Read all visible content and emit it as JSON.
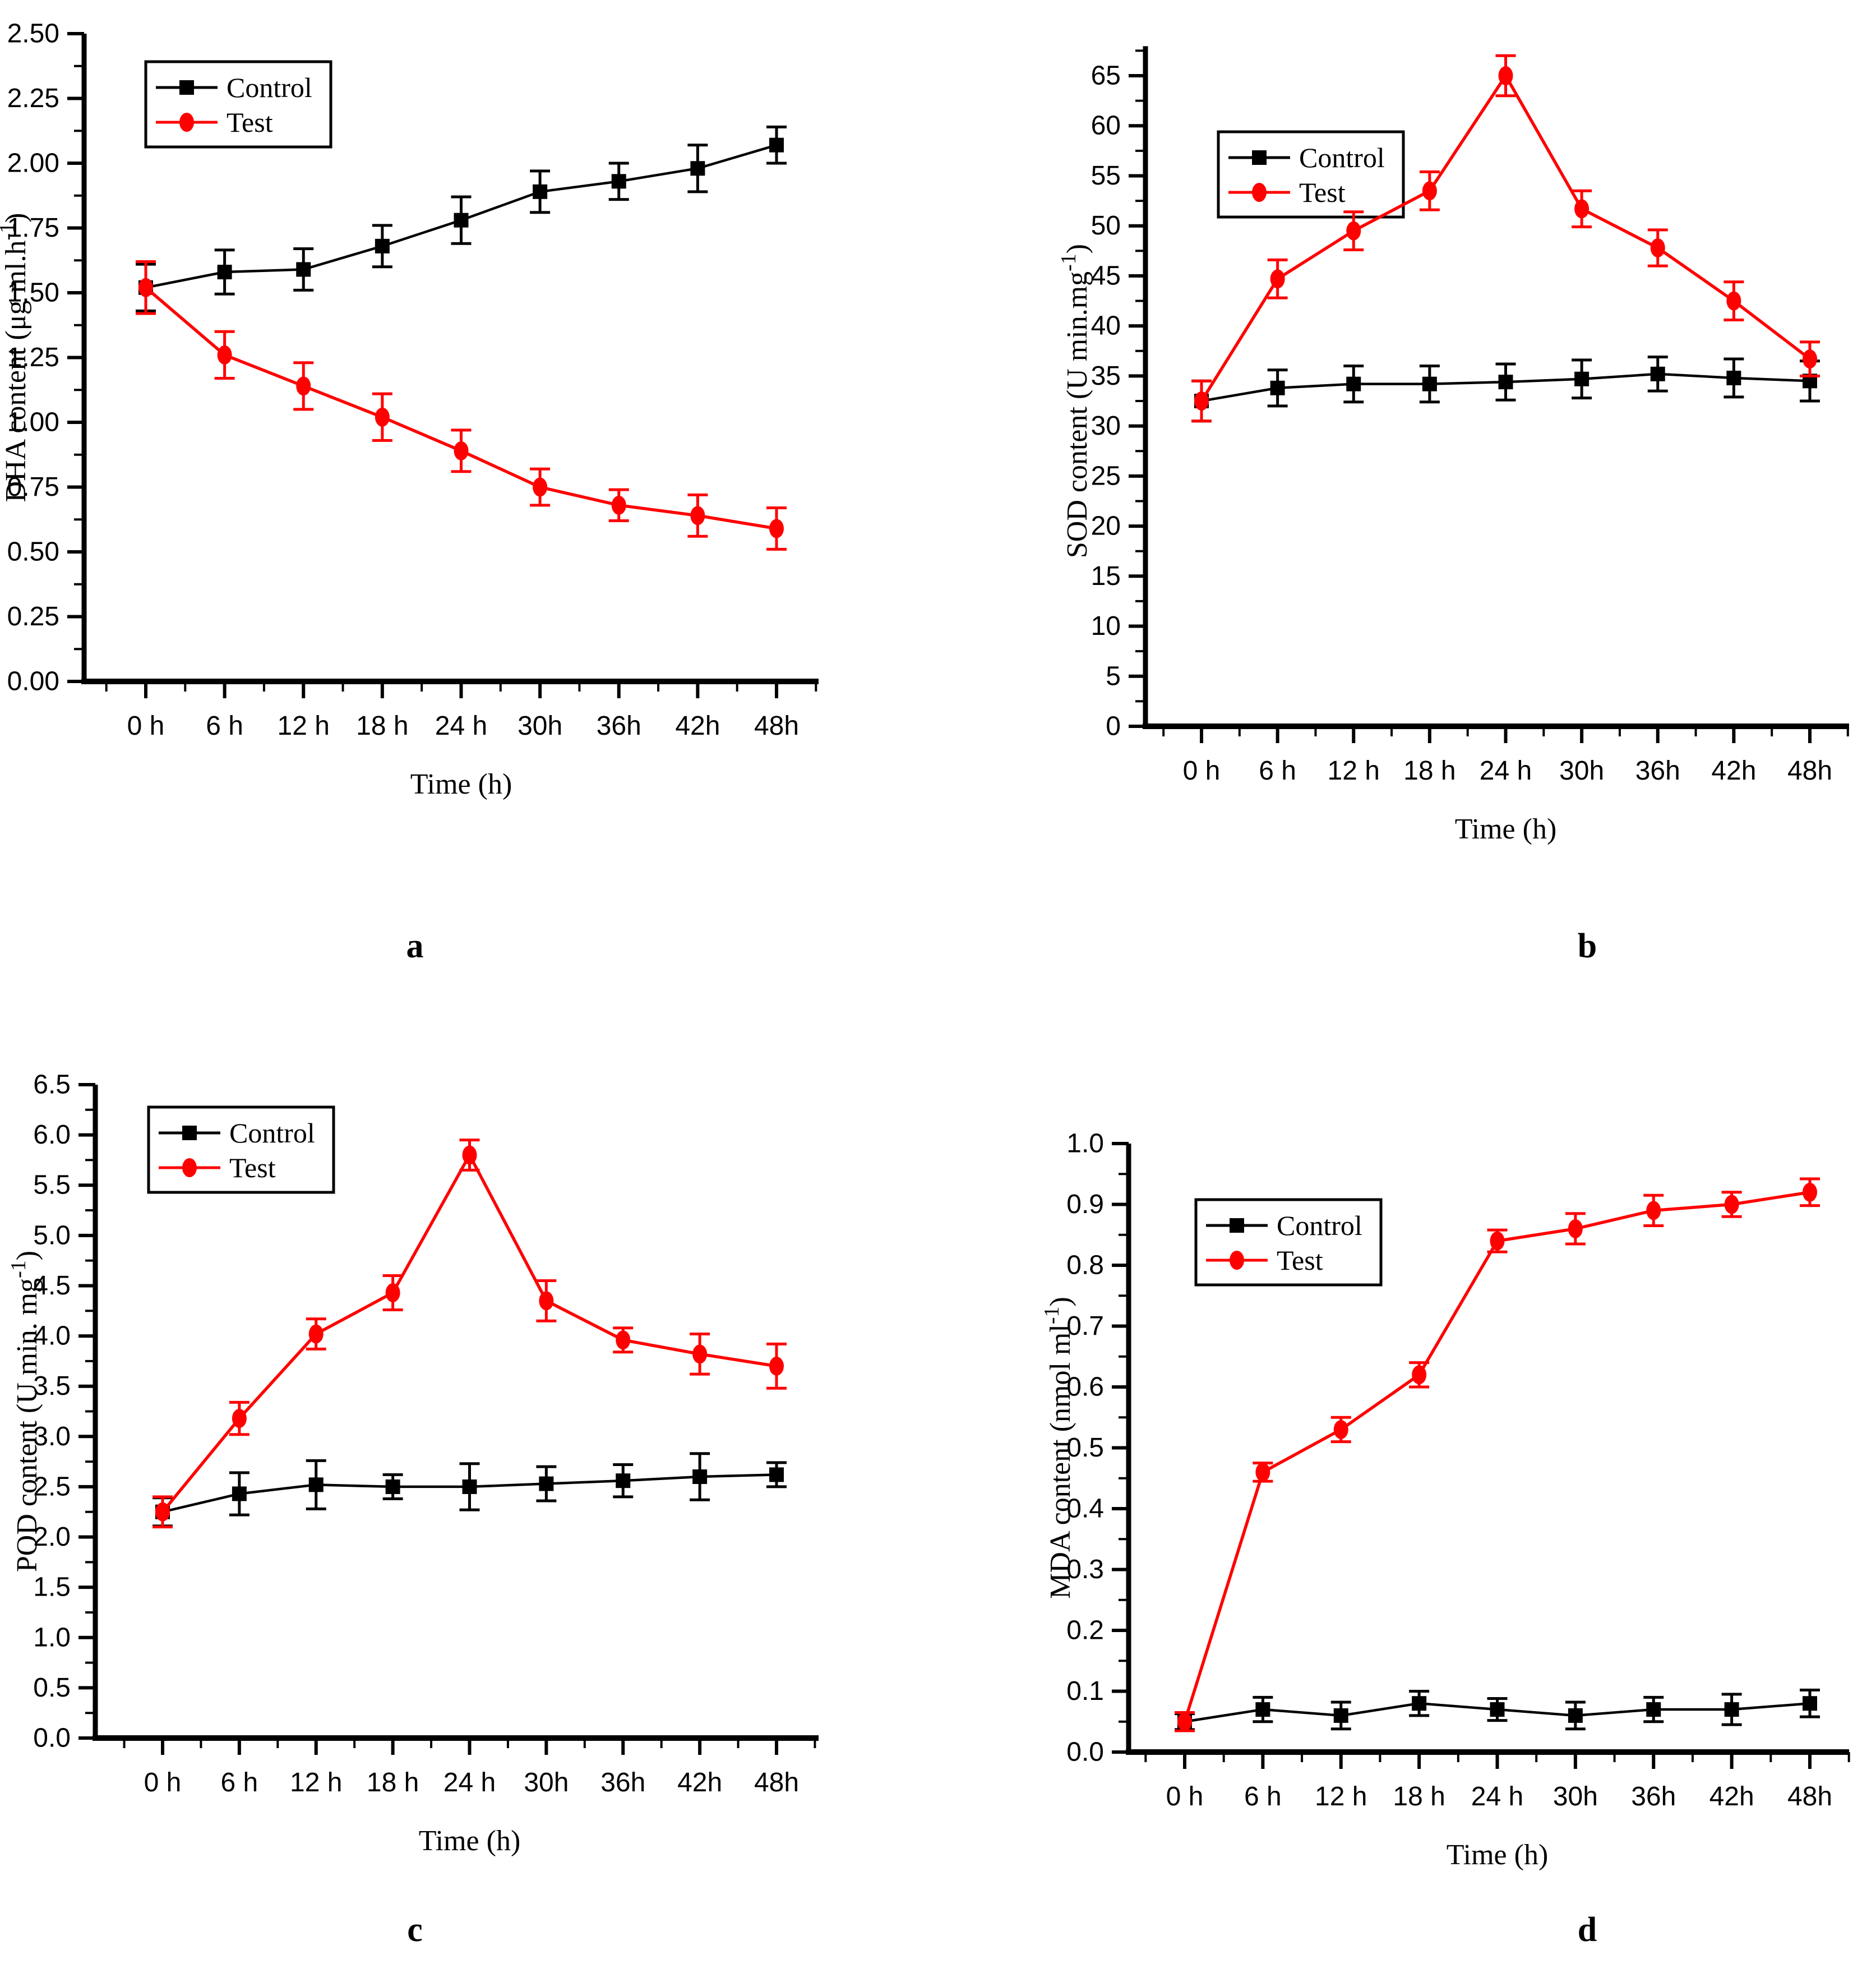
{
  "figure": {
    "background": "#ffffff",
    "control_color": "#000000",
    "test_color": "#ff0000"
  },
  "chart_data": [
    {
      "panel_label": "a",
      "type": "line",
      "title": "",
      "xlabel": "Time (h)",
      "ylabel": "DHA content (μg ml.h⁻¹)",
      "categories": [
        "0 h",
        "6 h",
        "12 h",
        "18 h",
        "24 h",
        "30h",
        "36h",
        "42h",
        "48h"
      ],
      "y_axis": {
        "min": 0,
        "max": 2.5,
        "major_step": 0.25,
        "minor_step": 0.125,
        "tick_labels": [
          "0.00",
          "0.25",
          "0.50",
          "0.75",
          "1.00",
          "1.25",
          "1.50",
          "1.75",
          "2.00",
          "2.25",
          "2.50"
        ]
      },
      "legend": {
        "position": "top-left-inside",
        "entries": [
          "Control",
          "Test"
        ]
      },
      "grid": "off",
      "series": [
        {
          "name": "Control",
          "marker": "square",
          "color": "#000000",
          "values": [
            1.52,
            1.58,
            1.59,
            1.68,
            1.78,
            1.89,
            1.93,
            1.98,
            2.07
          ],
          "errors": [
            0.09,
            0.085,
            0.08,
            0.08,
            0.09,
            0.08,
            0.07,
            0.09,
            0.07
          ]
        },
        {
          "name": "Test",
          "marker": "ellipse",
          "color": "#ff0000",
          "values": [
            1.52,
            1.26,
            1.14,
            1.02,
            0.89,
            0.75,
            0.68,
            0.64,
            0.59
          ],
          "errors": [
            0.1,
            0.09,
            0.09,
            0.09,
            0.08,
            0.07,
            0.06,
            0.08,
            0.08
          ]
        }
      ]
    },
    {
      "panel_label": "b",
      "type": "line",
      "title": "",
      "xlabel": "Time (h)",
      "ylabel": "SOD content (U min.mg⁻¹)",
      "categories": [
        "0 h",
        "6 h",
        "12 h",
        "18 h",
        "24 h",
        "30h",
        "36h",
        "42h",
        "48h"
      ],
      "y_axis": {
        "min": 0,
        "max": 65,
        "major_step": 5,
        "minor_step": 2.5,
        "tick_labels": [
          "0",
          "5",
          "10",
          "15",
          "20",
          "25",
          "30",
          "35",
          "40",
          "45",
          "50",
          "55",
          "60",
          "65"
        ]
      },
      "legend": {
        "position": "top-left-inside",
        "entries": [
          "Control",
          "Test"
        ]
      },
      "grid": "off",
      "series": [
        {
          "name": "Control",
          "marker": "square",
          "color": "#000000",
          "values": [
            32.5,
            33.8,
            34.2,
            34.2,
            34.4,
            34.7,
            35.2,
            34.8,
            34.5
          ],
          "errors": [
            2.0,
            1.8,
            1.8,
            1.8,
            1.8,
            1.9,
            1.7,
            1.9,
            2.0
          ]
        },
        {
          "name": "Test",
          "marker": "ellipse",
          "color": "#ff0000",
          "values": [
            32.5,
            44.7,
            49.5,
            53.5,
            65.0,
            51.7,
            47.8,
            42.5,
            36.7
          ],
          "errors": [
            2.0,
            1.9,
            1.9,
            1.9,
            2.0,
            1.8,
            1.8,
            1.9,
            1.7
          ]
        }
      ]
    },
    {
      "panel_label": "c",
      "type": "line",
      "title": "",
      "xlabel": "Time (h)",
      "ylabel": "POD content (U min. mg⁻¹)",
      "categories": [
        "0 h",
        "6 h",
        "12 h",
        "18 h",
        "24 h",
        "30h",
        "36h",
        "42h",
        "48h"
      ],
      "y_axis": {
        "min": 0,
        "max": 6.5,
        "major_step": 0.5,
        "minor_step": 0.25,
        "tick_labels": [
          "0.0",
          "0.5",
          "1.0",
          "1.5",
          "2.0",
          "2.5",
          "3.0",
          "3.5",
          "4.0",
          "4.5",
          "5.0",
          "5.5",
          "6.0",
          "6.5"
        ]
      },
      "legend": {
        "position": "top-left-inside",
        "entries": [
          "Control",
          "Test"
        ]
      },
      "grid": "off",
      "series": [
        {
          "name": "Control",
          "marker": "square",
          "color": "#000000",
          "values": [
            2.25,
            2.43,
            2.52,
            2.5,
            2.5,
            2.53,
            2.56,
            2.6,
            2.62
          ],
          "errors": [
            0.14,
            0.21,
            0.24,
            0.12,
            0.23,
            0.17,
            0.16,
            0.23,
            0.12
          ]
        },
        {
          "name": "Test",
          "marker": "ellipse",
          "color": "#ff0000",
          "values": [
            2.25,
            3.18,
            4.02,
            4.43,
            5.8,
            4.35,
            3.96,
            3.82,
            3.7
          ],
          "errors": [
            0.15,
            0.16,
            0.15,
            0.17,
            0.15,
            0.2,
            0.12,
            0.2,
            0.22
          ]
        }
      ]
    },
    {
      "panel_label": "d",
      "type": "line",
      "title": "",
      "xlabel": "Time (h)",
      "ylabel": "MDA content (nmol ml⁻¹)",
      "categories": [
        "0 h",
        "6 h",
        "12 h",
        "18 h",
        "24 h",
        "30h",
        "36h",
        "42h",
        "48h"
      ],
      "y_axis": {
        "min": 0,
        "max": 1.0,
        "major_step": 0.1,
        "minor_step": 0.05,
        "tick_labels": [
          "0.0",
          "0.1",
          "0.2",
          "0.3",
          "0.4",
          "0.5",
          "0.6",
          "0.7",
          "0.8",
          "0.9",
          "1.0"
        ]
      },
      "legend": {
        "position": "top-left-inside",
        "entries": [
          "Control",
          "Test"
        ]
      },
      "grid": "off",
      "series": [
        {
          "name": "Control",
          "marker": "square",
          "color": "#000000",
          "values": [
            0.05,
            0.07,
            0.06,
            0.08,
            0.07,
            0.06,
            0.07,
            0.07,
            0.08
          ],
          "errors": [
            0.013,
            0.02,
            0.022,
            0.02,
            0.018,
            0.022,
            0.02,
            0.025,
            0.022
          ]
        },
        {
          "name": "Test",
          "marker": "ellipse",
          "color": "#ff0000",
          "values": [
            0.05,
            0.46,
            0.53,
            0.62,
            0.84,
            0.86,
            0.89,
            0.9,
            0.92
          ],
          "errors": [
            0.015,
            0.015,
            0.02,
            0.02,
            0.018,
            0.025,
            0.025,
            0.02,
            0.022
          ]
        }
      ]
    }
  ]
}
